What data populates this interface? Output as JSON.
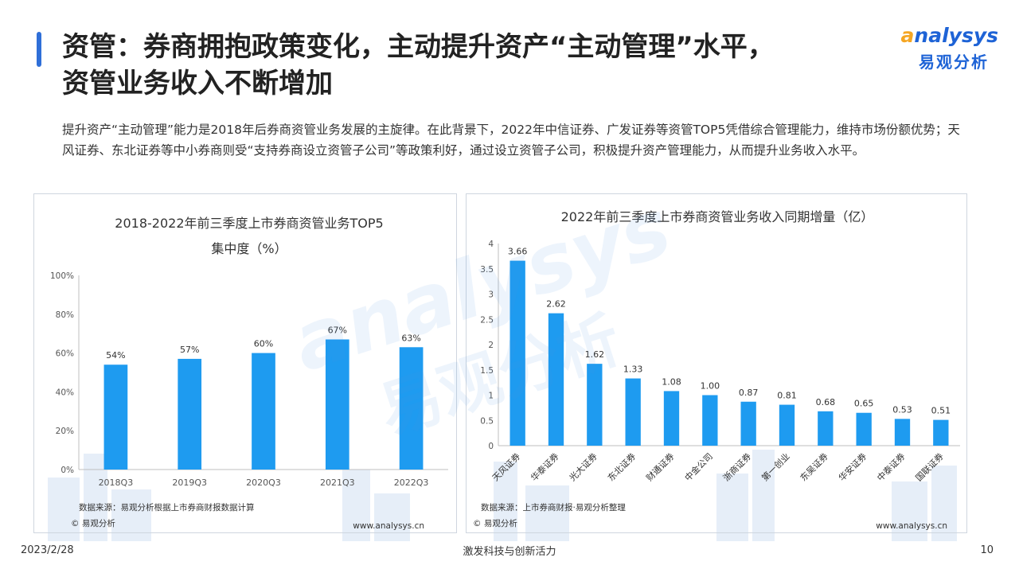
{
  "page": {
    "title_lines": [
      "资管：券商拥抱政策变化，主动提升资产“主动管理”水平，",
      "资管业务收入不断增加"
    ],
    "intro": "提升资产“主动管理”能力是2018年后券商资管业务发展的主旋律。在此背景下，2022年中信证券、广发证券等资管TOP5凭借综合管理能力，维持市场份额优势；天风证券、东北证券等中小券商则受“支持券商设立资管子公司”等政策利好，通过设立资管子公司，积极提升资产管理能力，从而提升业务收入水平。",
    "logo_en_a": "a",
    "logo_en_rest": "nalysys",
    "logo_zh": "易观分析",
    "watermark_en": "analysys",
    "watermark_zh": "易观分析",
    "footer": {
      "date": "2023/2/28",
      "slogan": "激发科技与创新活力",
      "page": "10"
    },
    "colors": {
      "accent": "#2f6fd8",
      "bar": "#1e9bf0"
    }
  },
  "chart_data": [
    {
      "type": "bar",
      "title_lines": [
        "2018-2022年前三季度上市券商资管业务TOP5",
        "集中度（%）"
      ],
      "categories": [
        "2018Q3",
        "2019Q3",
        "2020Q3",
        "2021Q3",
        "2022Q3"
      ],
      "values": [
        54,
        57,
        60,
        67,
        63
      ],
      "data_labels": [
        "54%",
        "57%",
        "60%",
        "67%",
        "63%"
      ],
      "ylim": [
        0,
        100
      ],
      "yticks": [
        0,
        20,
        40,
        60,
        80,
        100
      ],
      "ytick_labels": [
        "0%",
        "20%",
        "40%",
        "60%",
        "80%",
        "100%"
      ],
      "source": "数据来源：易观分析根据上市券商财报数据计算",
      "copyright": "© 易观分析",
      "site": "www.analysys.cn",
      "grid": false
    },
    {
      "type": "bar",
      "title_lines": [
        "2022年前三季度上市券商资管业务收入同期增量（亿）"
      ],
      "categories": [
        "天风证券",
        "华泰证券",
        "光大证券",
        "东北证券",
        "财通证券",
        "中金公司",
        "浙商证券",
        "第一创业",
        "东吴证券",
        "华安证券",
        "中泰证券",
        "国联证券"
      ],
      "values": [
        3.66,
        2.62,
        1.62,
        1.33,
        1.08,
        1.0,
        0.87,
        0.81,
        0.68,
        0.65,
        0.53,
        0.51
      ],
      "data_labels": [
        "3.66",
        "2.62",
        "1.62",
        "1.33",
        "1.08",
        "1.00",
        "0.87",
        "0.81",
        "0.68",
        "0.65",
        "0.53",
        "0.51"
      ],
      "ylim": [
        0,
        4
      ],
      "yticks": [
        0,
        0.5,
        1,
        1.5,
        2,
        2.5,
        3,
        3.5,
        4
      ],
      "ytick_labels": [
        "0",
        "0.5",
        "1",
        "1.5",
        "2",
        "2.5",
        "3",
        "3.5",
        "4"
      ],
      "source": "数据来源：上市券商财报·易观分析整理",
      "copyright": "© 易观分析",
      "site": "www.analysys.cn",
      "grid": false
    }
  ]
}
